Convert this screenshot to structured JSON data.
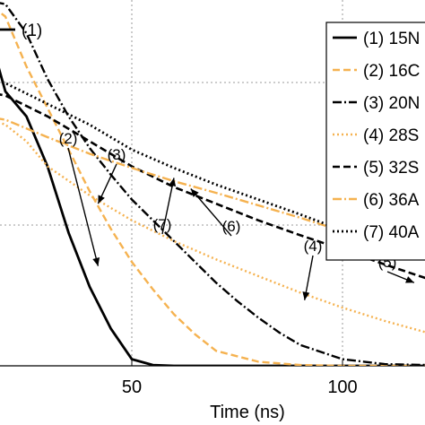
{
  "chart_data": {
    "type": "line",
    "xlabel": "Time (ns)",
    "x_ticks": [
      "50",
      "100"
    ],
    "legend_placement": "top-right",
    "grid": true,
    "series": [
      {
        "name": "(1) 15N",
        "color": "#000000",
        "dash": "solid",
        "width": 2.8,
        "points": [
          [
            10,
            420
          ],
          [
            15,
            420
          ],
          [
            20,
            330
          ],
          [
            25,
            300
          ],
          [
            30,
            240
          ],
          [
            35,
            160
          ],
          [
            40,
            95
          ],
          [
            45,
            45
          ],
          [
            50,
            8
          ],
          [
            55,
            1
          ],
          [
            60,
            0
          ],
          [
            80,
            0
          ],
          [
            100,
            0
          ],
          [
            130,
            0
          ]
        ]
      },
      {
        "name": "(2) 16C",
        "color": "#F5B250",
        "dash": "8,4",
        "width": 2.4,
        "points": [
          [
            10,
            440
          ],
          [
            15,
            440
          ],
          [
            20,
            420
          ],
          [
            25,
            360
          ],
          [
            30,
            310
          ],
          [
            35,
            260
          ],
          [
            40,
            210
          ],
          [
            45,
            165
          ],
          [
            50,
            125
          ],
          [
            55,
            92
          ],
          [
            60,
            62
          ],
          [
            65,
            38
          ],
          [
            70,
            18
          ],
          [
            80,
            5
          ],
          [
            90,
            1
          ],
          [
            100,
            0
          ],
          [
            130,
            0
          ]
        ]
      },
      {
        "name": "(3) 20N",
        "color": "#000000",
        "dash": "10,3,2,3",
        "width": 2.4,
        "points": [
          [
            10,
            440
          ],
          [
            15,
            440
          ],
          [
            20,
            435
          ],
          [
            25,
            400
          ],
          [
            30,
            345
          ],
          [
            35,
            300
          ],
          [
            40,
            262
          ],
          [
            45,
            230
          ],
          [
            50,
            200
          ],
          [
            55,
            175
          ],
          [
            60,
            150
          ],
          [
            65,
            125
          ],
          [
            70,
            100
          ],
          [
            75,
            78
          ],
          [
            80,
            58
          ],
          [
            85,
            40
          ],
          [
            90,
            25
          ],
          [
            100,
            8
          ],
          [
            110,
            2
          ],
          [
            130,
            0
          ]
        ]
      },
      {
        "name": "(4) 28S",
        "color": "#F5B250",
        "dash": "2,3",
        "width": 2.4,
        "points": [
          [
            10,
            300
          ],
          [
            15,
            300
          ],
          [
            20,
            290
          ],
          [
            25,
            270
          ],
          [
            30,
            240
          ],
          [
            40,
            205
          ],
          [
            50,
            175
          ],
          [
            60,
            150
          ],
          [
            70,
            128
          ],
          [
            80,
            108
          ],
          [
            90,
            88
          ],
          [
            100,
            70
          ],
          [
            110,
            54
          ],
          [
            120,
            40
          ],
          [
            130,
            30
          ]
        ]
      },
      {
        "name": "(5) 32S",
        "color": "#000000",
        "dash": "8,4",
        "width": 2.6,
        "points": [
          [
            10,
            330
          ],
          [
            15,
            330
          ],
          [
            20,
            325
          ],
          [
            30,
            300
          ],
          [
            40,
            270
          ],
          [
            50,
            240
          ],
          [
            60,
            215
          ],
          [
            70,
            195
          ],
          [
            80,
            175
          ],
          [
            90,
            157
          ],
          [
            100,
            140
          ],
          [
            110,
            122
          ],
          [
            120,
            105
          ],
          [
            130,
            88
          ]
        ]
      },
      {
        "name": "(6) 36A",
        "color": "#F5B250",
        "dash": "10,3,2,3",
        "width": 2.4,
        "points": [
          [
            10,
            300
          ],
          [
            15,
            300
          ],
          [
            20,
            296
          ],
          [
            30,
            275
          ],
          [
            40,
            255
          ],
          [
            50,
            238
          ],
          [
            60,
            222
          ],
          [
            70,
            208
          ],
          [
            80,
            193
          ],
          [
            90,
            178
          ],
          [
            100,
            162
          ],
          [
            110,
            146
          ],
          [
            120,
            130
          ],
          [
            130,
            115
          ]
        ]
      },
      {
        "name": "(7) 40A",
        "color": "#000000",
        "dash": "2,3",
        "width": 2.8,
        "points": [
          [
            10,
            350
          ],
          [
            15,
            350
          ],
          [
            20,
            340
          ],
          [
            30,
            315
          ],
          [
            40,
            290
          ],
          [
            50,
            260
          ],
          [
            60,
            238
          ],
          [
            70,
            218
          ],
          [
            80,
            200
          ],
          [
            90,
            182
          ],
          [
            100,
            163
          ],
          [
            110,
            145
          ],
          [
            120,
            127
          ],
          [
            130,
            108
          ]
        ]
      }
    ],
    "top_left_label": "(1)",
    "annotations": [
      {
        "text": "(2)",
        "target": [
          42,
          120
        ]
      },
      {
        "text": "(3)",
        "target": [
          42,
          195
        ]
      },
      {
        "text": "(7)",
        "target": [
          60,
          226
        ]
      },
      {
        "text": "(6)",
        "target": [
          64,
          213
        ]
      },
      {
        "text": "(4)",
        "target": [
          91,
          79
        ]
      },
      {
        "text": "(5)",
        "target": [
          117,
          100
        ]
      }
    ]
  }
}
